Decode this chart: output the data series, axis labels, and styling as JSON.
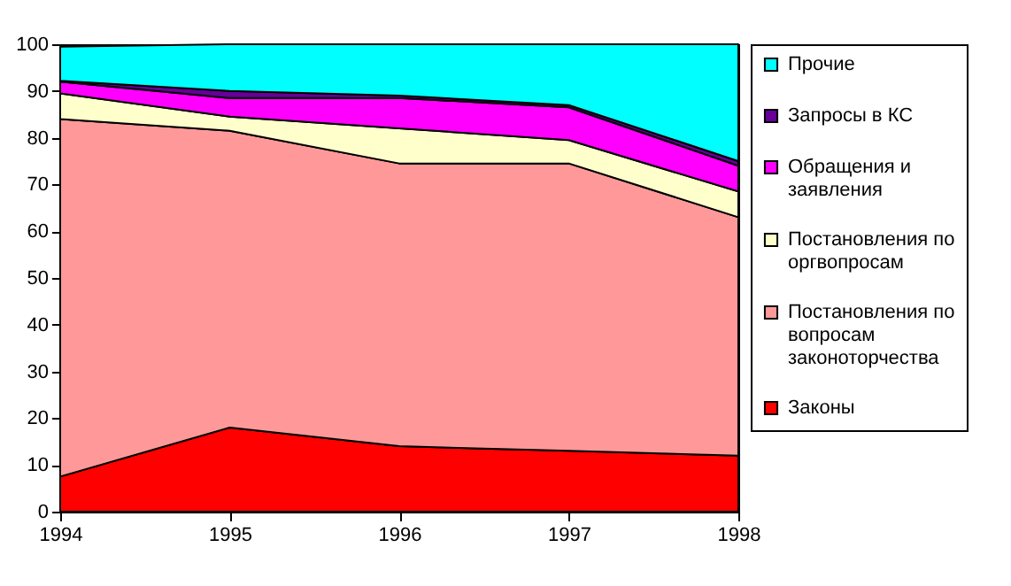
{
  "chart_data": {
    "type": "area",
    "stacked": true,
    "x": [
      1994,
      1995,
      1996,
      1997,
      1998
    ],
    "xlim": [
      1994,
      1998
    ],
    "xticks": [
      1994,
      1995,
      1996,
      1997,
      1998
    ],
    "ylim": [
      0,
      100
    ],
    "yticks": [
      0,
      10,
      20,
      30,
      40,
      50,
      60,
      70,
      80,
      90,
      100
    ],
    "grid": false,
    "legend": "right",
    "series": [
      {
        "name": "Законы",
        "color": "#ff0000",
        "values": [
          7.5,
          18,
          14,
          13,
          12
        ]
      },
      {
        "name": "Постановления по вопросам законоторчества",
        "color": "#ff9999",
        "values": [
          76.5,
          63.5,
          60.5,
          61.5,
          51
        ]
      },
      {
        "name": "Постановления по оргвопросам",
        "color": "#ffffcc",
        "values": [
          5.5,
          3,
          7.5,
          5,
          5.5
        ]
      },
      {
        "name": "Обращения и заявления",
        "color": "#ff00ff",
        "values": [
          2.5,
          4,
          6.5,
          7,
          5.5
        ]
      },
      {
        "name": "Запросы в КС",
        "color": "#660099",
        "values": [
          0.2,
          1.5,
          0.5,
          0.5,
          1
        ]
      },
      {
        "name": "Прочие",
        "color": "#00ffff",
        "values": [
          7.3,
          10,
          11,
          13,
          25
        ]
      }
    ]
  }
}
